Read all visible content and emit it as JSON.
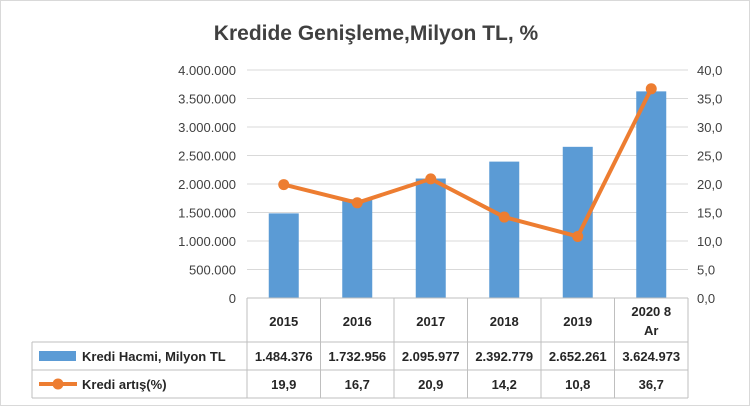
{
  "chart_data": {
    "type": "bar",
    "title": "Kredide Genişleme,Milyon TL, %",
    "categories": [
      "2015",
      "2016",
      "2017",
      "2018",
      "2019",
      "2020 8 Ar"
    ],
    "category_lines": [
      [
        "2015"
      ],
      [
        "2016"
      ],
      [
        "2017"
      ],
      [
        "2018"
      ],
      [
        "2019"
      ],
      [
        "2020 8",
        "Ar"
      ]
    ],
    "series": [
      {
        "name": "Kredi Hacmi, Milyon TL",
        "type": "bar",
        "axis": "left",
        "values": [
          1484376,
          1732956,
          2095977,
          2392779,
          2652261,
          3624973
        ],
        "labels": [
          "1.484.376",
          "1.732.956",
          "2.095.977",
          "2.392.779",
          "2.652.261",
          "3.624.973"
        ],
        "color": "#5B9BD5"
      },
      {
        "name": "Kredi artış(%)",
        "type": "line",
        "axis": "right",
        "values": [
          19.9,
          16.7,
          20.9,
          14.2,
          10.8,
          36.7
        ],
        "labels": [
          "19,9",
          "16,7",
          "20,9",
          "14,2",
          "10,8",
          "36,7"
        ],
        "color": "#ED7D31"
      }
    ],
    "y_left": {
      "range": [
        0,
        4000000
      ],
      "ticks": [
        "0",
        "500.000",
        "1.000.000",
        "1.500.000",
        "2.000.000",
        "2.500.000",
        "3.000.000",
        "3.500.000",
        "4.000.000"
      ]
    },
    "y_right": {
      "range": [
        0,
        40
      ],
      "ticks": [
        "0,0",
        "5,0",
        "10,0",
        "15,0",
        "20,0",
        "25,0",
        "30,0",
        "35,0",
        "40,0"
      ]
    },
    "grid": true,
    "legend": "data-table",
    "colors": {
      "grid": "#d9d9d9",
      "table_border": "#bfbfbf",
      "text": "#404040"
    }
  }
}
